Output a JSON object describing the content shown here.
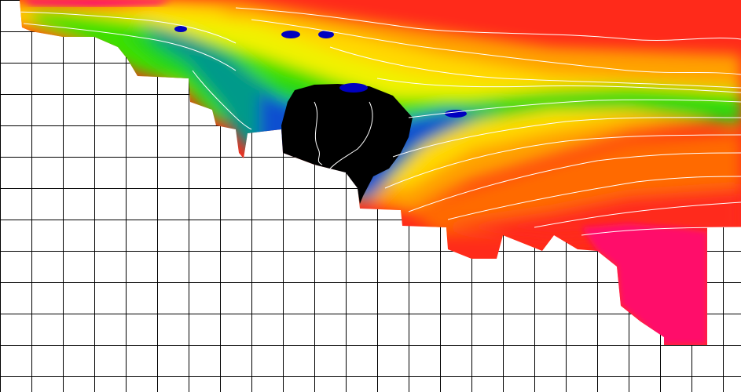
{
  "map": {
    "background": "#ffffff",
    "grid_color": "#000000",
    "contour_color": "#ffffff",
    "palette": [
      "#ff0080",
      "#ff2a1a",
      "#ff6a00",
      "#ffa000",
      "#ffd800",
      "#f5f500",
      "#c8f000",
      "#5be800",
      "#1fd21f",
      "#00a080",
      "#1060d0",
      "#0000c0",
      "#000000"
    ]
  }
}
